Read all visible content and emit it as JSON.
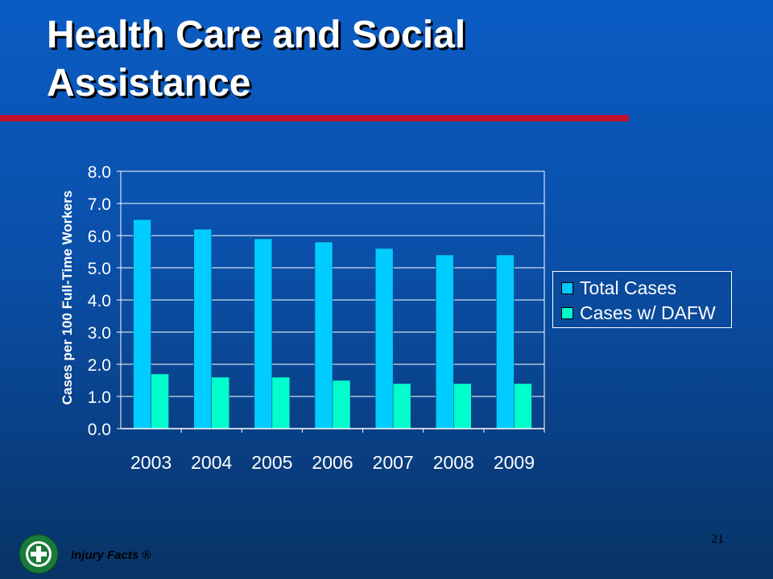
{
  "header": {
    "title": "Health Care and Social Assistance"
  },
  "footer": {
    "label": "Injury Facts ®",
    "page_number": "21"
  },
  "colors": {
    "total_cases": "#00ccff",
    "cases_dafw": "#00ffcc",
    "title_rule": "#c0112d"
  },
  "logo": {
    "icon": "national-safety-council-logo"
  },
  "chart_data": {
    "type": "bar",
    "title": "",
    "xlabel": "",
    "ylabel": "Cases per 100 Full-Time Workers",
    "categories": [
      "2003",
      "2004",
      "2005",
      "2006",
      "2007",
      "2008",
      "2009"
    ],
    "series": [
      {
        "name": "Total Cases",
        "values": [
          6.5,
          6.2,
          5.9,
          5.8,
          5.6,
          5.4,
          5.4
        ]
      },
      {
        "name": "Cases w/ DAFW",
        "values": [
          1.7,
          1.6,
          1.6,
          1.5,
          1.4,
          1.4,
          1.4
        ]
      }
    ],
    "ylim": [
      0,
      8
    ],
    "yticks": [
      "0.0",
      "1.0",
      "2.0",
      "3.0",
      "4.0",
      "5.0",
      "6.0",
      "7.0",
      "8.0"
    ],
    "grid": true,
    "legend_position": "right"
  }
}
